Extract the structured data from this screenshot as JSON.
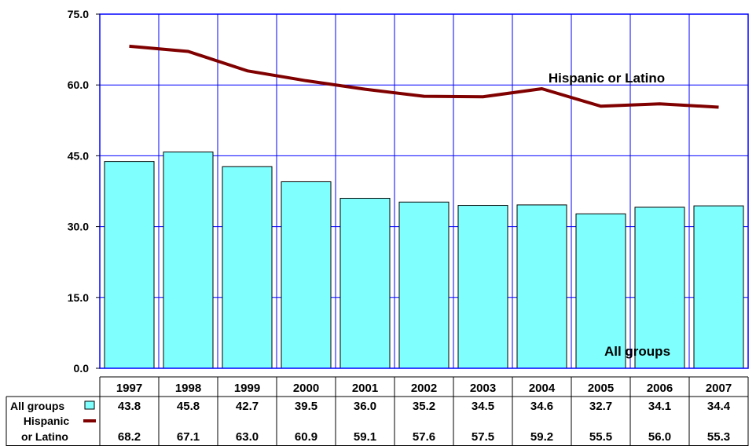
{
  "chart_data": {
    "type": "bar",
    "categories": [
      "1997",
      "1998",
      "1999",
      "2000",
      "2001",
      "2002",
      "2003",
      "2004",
      "2005",
      "2006",
      "2007"
    ],
    "ylim": [
      0,
      75
    ],
    "yticks": [
      "0.0",
      "15.0",
      "30.0",
      "45.0",
      "60.0",
      "75.0"
    ],
    "ytick_values": [
      0,
      15,
      30,
      45,
      60,
      75
    ],
    "grid": true,
    "series": [
      {
        "name": "All groups",
        "kind": "bar",
        "color": "#80FFFF",
        "values": [
          43.8,
          45.8,
          42.7,
          39.5,
          36.0,
          35.2,
          34.5,
          34.6,
          32.7,
          34.1,
          34.4
        ],
        "labels": [
          "43.8",
          "45.8",
          "42.7",
          "39.5",
          "36.0",
          "35.2",
          "34.5",
          "34.6",
          "32.7",
          "34.1",
          "34.4"
        ]
      },
      {
        "name": "Hispanic or Latino",
        "name_lines": [
          "Hispanic",
          "or Latino"
        ],
        "kind": "line",
        "color": "#800000",
        "values": [
          68.2,
          67.1,
          63.0,
          60.9,
          59.1,
          57.6,
          57.5,
          59.2,
          55.5,
          56.0,
          55.3
        ],
        "labels": [
          "68.2",
          "67.1",
          "63.0",
          "60.9",
          "59.1",
          "57.6",
          "57.5",
          "59.2",
          "55.5",
          "56.0",
          "55.3"
        ]
      }
    ],
    "annotations": {
      "line_label": "Hispanic or Latino",
      "bar_label": "All groups"
    },
    "colors": {
      "plot_border": "#0000FF",
      "grid": "#0000FF",
      "bar_edge": "#000000"
    }
  }
}
